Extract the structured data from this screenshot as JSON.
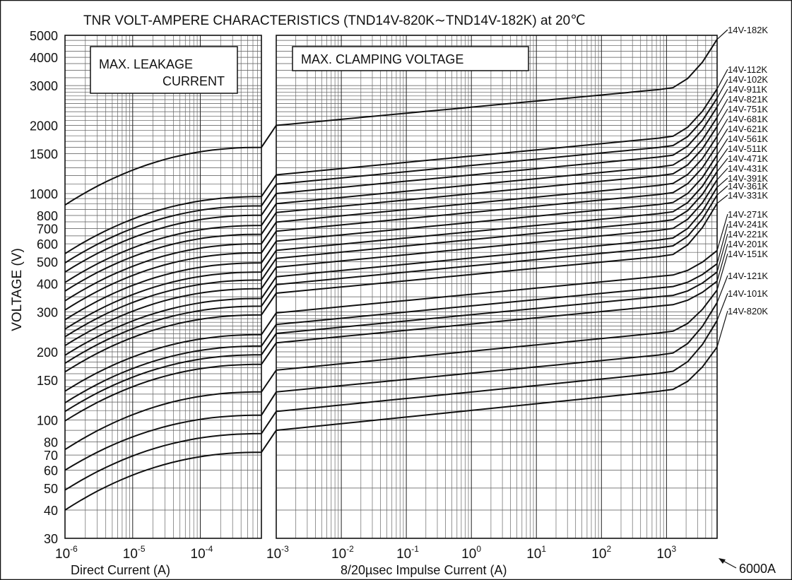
{
  "chart_data": {
    "type": "line",
    "title": "TNR VOLT-AMPERE CHARACTERISTICS (TND14V-820K∼TND14V-182K)  at 20℃",
    "ylabel": "VOLTAGE (V)",
    "yscale": "log",
    "ylim": [
      30,
      5000
    ],
    "y_ticks": [
      "30",
      "40",
      "50",
      "60",
      "70",
      "80",
      "100",
      "150",
      "200",
      "300",
      "400",
      "500",
      "600",
      "700",
      "800",
      "1000",
      "1500",
      "2000",
      "3000",
      "4000",
      "5000"
    ],
    "panels": [
      {
        "title_lines": [
          "MAX.    LEAKAGE",
          "CURRENT"
        ],
        "xlabel": "Direct  Current (A)",
        "xscale": "log",
        "xlim": [
          1e-06,
          0.0008
        ],
        "x_ticks": [
          {
            "base": "10",
            "exp": "-6"
          },
          {
            "base": "10",
            "exp": "-5"
          },
          {
            "base": "10",
            "exp": "-4"
          }
        ]
      },
      {
        "title": "MAX.  CLAMPING  VOLTAGE",
        "xlabel": "8/20µsec  Impulse  Current (A)",
        "xscale": "log",
        "xlim": [
          0.001,
          6000
        ],
        "x_ticks": [
          {
            "base": "10",
            "exp": "-3"
          },
          {
            "base": "10",
            "exp": "-2"
          },
          {
            "base": "10",
            "exp": "-1"
          },
          {
            "base": "10",
            "exp": "0"
          },
          {
            "base": "10",
            "exp": "1"
          },
          {
            "base": "10",
            "exp": "2"
          },
          {
            "base": "10",
            "exp": "3"
          }
        ]
      }
    ],
    "annotation": "6000A",
    "series": [
      {
        "name": "14V-820K",
        "leak": [
          40,
          72
        ],
        "clamp": [
          90,
          135,
          210
        ]
      },
      {
        "name": "14V-101K",
        "leak": [
          49,
          87
        ],
        "clamp": [
          109,
          162,
          275
        ]
      },
      {
        "name": "14V-121K",
        "leak": [
          60,
          105
        ],
        "clamp": [
          133,
          195,
          330
        ]
      },
      {
        "name": "14V-151K",
        "leak": [
          74,
          133
        ],
        "clamp": [
          166,
          244,
          375
        ]
      },
      {
        "name": "14V-201K",
        "leak": [
          99,
          176
        ],
        "clamp": [
          219,
          321,
          410
        ]
      },
      {
        "name": "14V-221K",
        "leak": [
          109,
          194
        ],
        "clamp": [
          241,
          353,
          450
        ]
      },
      {
        "name": "14V-241K",
        "leak": [
          119,
          212
        ],
        "clamp": [
          264,
          386,
          490
        ]
      },
      {
        "name": "14V-271K",
        "leak": [
          134,
          238
        ],
        "clamp": [
          297,
          434,
          560
        ]
      },
      {
        "name": "14V-331K",
        "leak": [
          163,
          291
        ],
        "clamp": [
          363,
          531,
          905
        ]
      },
      {
        "name": "14V-361K",
        "leak": [
          178,
          318
        ],
        "clamp": [
          396,
          580,
          985
        ]
      },
      {
        "name": "14V-391K",
        "leak": [
          193,
          344
        ],
        "clamp": [
          429,
          628,
          1065
        ]
      },
      {
        "name": "14V-431K",
        "leak": [
          213,
          380
        ],
        "clamp": [
          473,
          693,
          1150
        ]
      },
      {
        "name": "14V-471K",
        "leak": [
          233,
          415
        ],
        "clamp": [
          517,
          757,
          1250
        ]
      },
      {
        "name": "14V-511K",
        "leak": [
          252,
          450
        ],
        "clamp": [
          561,
          821,
          1360
        ]
      },
      {
        "name": "14V-561K",
        "leak": [
          277,
          494
        ],
        "clamp": [
          616,
          902,
          1480
        ]
      },
      {
        "name": "14V-621K",
        "leak": [
          306,
          547
        ],
        "clamp": [
          682,
          998,
          1630
        ]
      },
      {
        "name": "14V-681K",
        "leak": [
          336,
          600
        ],
        "clamp": [
          748,
          1095,
          1790
        ]
      },
      {
        "name": "14V-751K",
        "leak": [
          371,
          661
        ],
        "clamp": [
          825,
          1208,
          1980
        ]
      },
      {
        "name": "14V-821K",
        "leak": [
          405,
          723
        ],
        "clamp": [
          902,
          1320,
          2170
        ]
      },
      {
        "name": "14V-911K",
        "leak": [
          450,
          802
        ],
        "clamp": [
          1000,
          1460,
          2410
        ]
      },
      {
        "name": "14V-102K",
        "leak": [
          494,
          882
        ],
        "clamp": [
          1100,
          1610,
          2640
        ]
      },
      {
        "name": "14V-112K",
        "leak": [
          543,
          970
        ],
        "clamp": [
          1210,
          1770,
          2900
        ]
      },
      {
        "name": "14V-182K",
        "leak": [
          890,
          1600
        ],
        "clamp": [
          2000,
          2900,
          4800
        ]
      }
    ]
  }
}
